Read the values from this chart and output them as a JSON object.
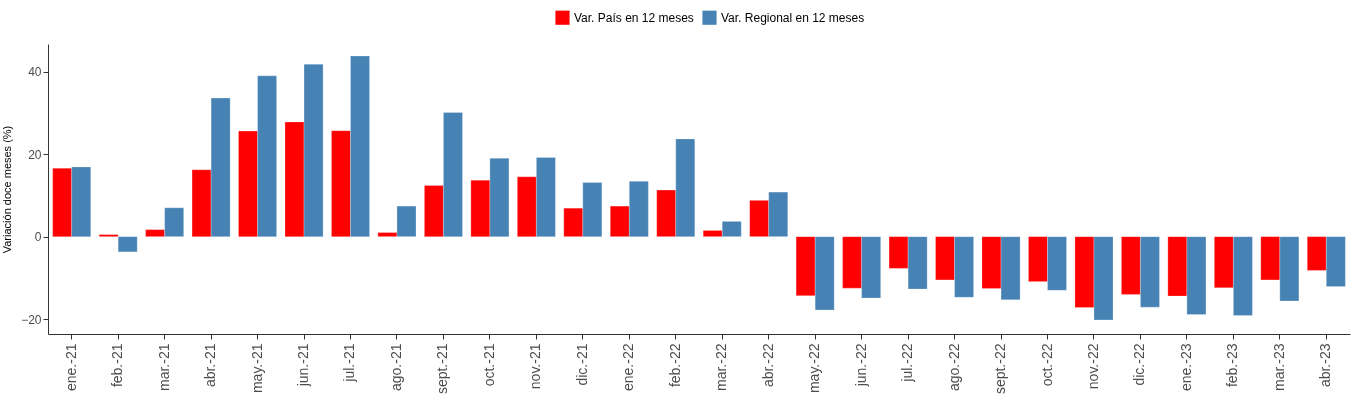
{
  "chart_data": {
    "type": "bar",
    "ylabel": "Variación doce meses (%)",
    "categories": [
      "ene.-21",
      "feb.-21",
      "mar.-21",
      "abr.-21",
      "may.-21",
      "jun.-21",
      "jul.-21",
      "ago.-21",
      "sept.-21",
      "oct.-21",
      "nov.-21",
      "dic.-21",
      "ene.-22",
      "feb.-22",
      "mar.-22",
      "abr.-22",
      "may.-22",
      "jun.-22",
      "jul.-22",
      "ago.-22",
      "sept.-22",
      "oct.-22",
      "nov.-22",
      "dic.-22",
      "ene.-23",
      "feb.-23",
      "mar.-23",
      "abr.-23"
    ],
    "series": [
      {
        "name": "Var. País en 12 meses",
        "color": "#ff0000",
        "values": [
          16.6,
          0.5,
          1.7,
          16.2,
          25.6,
          27.8,
          25.7,
          1.0,
          12.4,
          13.7,
          14.5,
          6.9,
          7.4,
          11.3,
          1.5,
          8.8,
          -14.3,
          -12.5,
          -7.7,
          -10.5,
          -12.6,
          -10.9,
          -17.2,
          -14.0,
          -14.4,
          -12.4,
          -10.5,
          -8.2
        ]
      },
      {
        "name": "Var. Regional en 12 meses",
        "color": "#4682b4",
        "values": [
          16.9,
          -3.7,
          7.0,
          33.6,
          39.0,
          41.8,
          43.8,
          7.4,
          30.1,
          19.0,
          19.2,
          13.1,
          13.4,
          23.7,
          3.7,
          10.8,
          -17.8,
          -14.9,
          -12.7,
          -14.7,
          -15.3,
          -13.0,
          -20.2,
          -17.1,
          -18.9,
          -19.1,
          -15.6,
          -12.1
        ]
      }
    ],
    "ylim": [
      -23.6,
      46.7
    ],
    "yticks": [
      -20,
      0,
      20,
      40
    ],
    "legend": "top"
  }
}
